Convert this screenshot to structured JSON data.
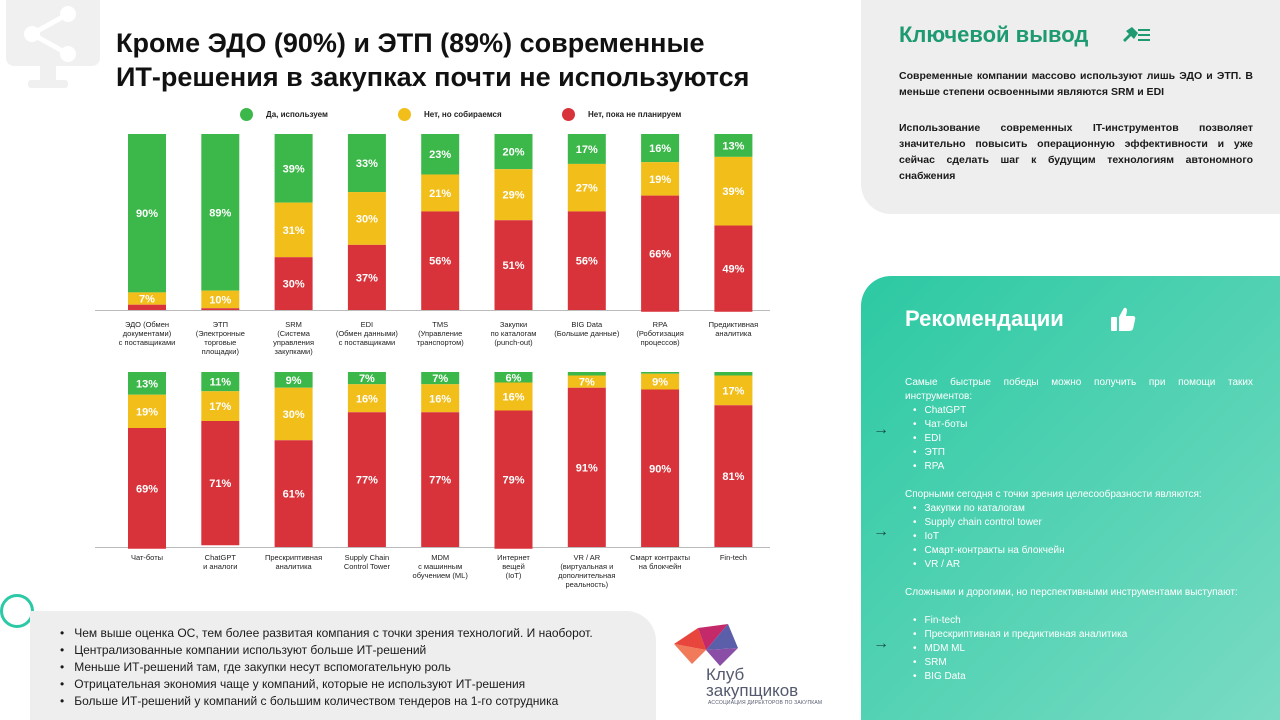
{
  "title_line1": "Кроме ЭДО (90%) и ЭТП (89%) современные",
  "title_line2": "ИТ-решения в закупках почти не используются",
  "icons": {
    "top_left": "share-monitor-icon",
    "key_takeaway": "pin-list-icon",
    "recommendations": "thumbs-up-icon",
    "arrow": "arrow-right-icon"
  },
  "colors": {
    "green": "#3cb84a",
    "yellow": "#f2be1a",
    "red": "#d8333b",
    "teal": "#2cc9a3",
    "kv_title": "#1e9a72"
  },
  "chart_data": [
    {
      "type": "bar",
      "stacked": true,
      "categories": [
        [
          "ЭДО (Обмен",
          "документами)",
          "с поставщиками"
        ],
        [
          "ЭТП",
          "(Электронные",
          "торговые",
          "площадки)"
        ],
        [
          "SRM",
          "(Система",
          "управления",
          "закупками)"
        ],
        [
          "EDI",
          "(Обмен данными)",
          "с поставщиками"
        ],
        [
          "TMS",
          "(Управление",
          "транспортом)"
        ],
        [
          "Закупки",
          "по каталогам",
          "(punch-out)"
        ],
        [
          "BIG Data",
          "(Большие данные)"
        ],
        [
          "RPA",
          "(Роботизация",
          "процессов)"
        ],
        [
          "Предиктивная",
          "аналитика"
        ]
      ],
      "series": [
        {
          "name": "Да, используем",
          "color": "#3cb84a",
          "values": [
            90,
            89,
            39,
            33,
            23,
            20,
            17,
            16,
            13
          ]
        },
        {
          "name": "Нет, но собираемся",
          "color": "#f2be1a",
          "values": [
            7,
            10,
            31,
            30,
            21,
            29,
            27,
            19,
            39
          ]
        },
        {
          "name": "Нет, пока не планируем",
          "color": "#d8333b",
          "values": [
            3,
            1,
            30,
            37,
            56,
            51,
            56,
            66,
            49
          ]
        }
      ],
      "labels": [
        [
          "90%",
          "7%",
          ""
        ],
        [
          "89%",
          "10%",
          ""
        ],
        [
          "39%",
          "31%",
          "30%"
        ],
        [
          "33%",
          "30%",
          "37%"
        ],
        [
          "23%",
          "21%",
          "56%"
        ],
        [
          "20%",
          "29%",
          "51%"
        ],
        [
          "17%",
          "27%",
          "56%"
        ],
        [
          "16%",
          "19%",
          "66%"
        ],
        [
          "13%",
          "39%",
          "49%"
        ]
      ],
      "ylim": [
        0,
        100
      ],
      "legend": "top"
    },
    {
      "type": "bar",
      "stacked": true,
      "categories": [
        [
          "Чат-боты"
        ],
        [
          "ChatGPT",
          "и аналоги"
        ],
        [
          "Прескриптивная",
          "аналитика"
        ],
        [
          "Supply Chain",
          "Control Tower"
        ],
        [
          "MDM",
          "с машинным",
          "обучением (ML)"
        ],
        [
          "Интернет",
          "вещей",
          "(IoT)"
        ],
        [
          "VR / AR",
          "(виртуальная и",
          "дополнительная",
          "реальность)"
        ],
        [
          "Смарт контракты",
          "на блокчейн"
        ],
        [
          "Fin-tech"
        ]
      ],
      "series": [
        {
          "name": "Да, используем",
          "color": "#3cb84a",
          "values": [
            13,
            11,
            9,
            7,
            7,
            6,
            2,
            1,
            2
          ]
        },
        {
          "name": "Нет, но собираемся",
          "color": "#f2be1a",
          "values": [
            19,
            17,
            30,
            16,
            16,
            16,
            7,
            9,
            17
          ]
        },
        {
          "name": "Нет, пока не планируем",
          "color": "#d8333b",
          "values": [
            69,
            71,
            61,
            77,
            77,
            79,
            91,
            90,
            81
          ]
        }
      ],
      "labels": [
        [
          "13%",
          "19%",
          "69%"
        ],
        [
          "11%",
          "17%",
          "71%"
        ],
        [
          "9%",
          "30%",
          "61%"
        ],
        [
          "7%",
          "16%",
          "77%"
        ],
        [
          "7%",
          "16%",
          "77%"
        ],
        [
          "6%",
          "16%",
          "79%"
        ],
        [
          "",
          "7%",
          "91%"
        ],
        [
          "",
          "9%",
          "90%"
        ],
        [
          "",
          "17%",
          "81%"
        ]
      ],
      "ylim": [
        0,
        100
      ]
    }
  ],
  "notes": [
    "Чем выше оценка ОС, тем более развитая компания с точки зрения технологий. И наоборот.",
    "Централизованные компании используют больше ИТ-решений",
    "Меньше ИТ-решений там, где закупки несут вспомогательную роль",
    "Отрицательная экономия чаще у компаний, которые не используют ИТ-решения",
    "Больше ИТ-решений у компаний с большим количеством тендеров на 1-го сотрудника"
  ],
  "logo": {
    "name_line1": "Клуб",
    "name_line2": "закупщиков",
    "subtitle": "АССОЦИАЦИЯ ДИРЕКТОРОВ ПО ЗАКУПКАМ"
  },
  "key_takeaway": {
    "title": "Ключевой вывод",
    "p1": "Современные компании массово используют лишь ЭДО и ЭТП. В меньше степени освоенными являются SRM и EDI",
    "p2": "Использование современных IT-инструментов позволяет значительно повысить операционную эффективности и уже сейчас сделать шаг к будущим технологиям автономного снабжения"
  },
  "recommendations": {
    "title": "Рекомендации",
    "groups": [
      {
        "intro": "Самые быстрые победы можно получить при помощи таких инструментов:",
        "items": [
          "ChatGPT",
          "Чат-боты",
          "EDI",
          "ЭТП",
          "RPA"
        ]
      },
      {
        "intro": "Спорными сегодня с точки зрения целесообразности являются:",
        "items": [
          "Закупки по каталогам",
          "Supply chain control tower",
          "IoT",
          "Смарт-контракты на блокчейн",
          "VR / AR"
        ]
      },
      {
        "intro": "Сложными и дорогими, но перспективными инструментами выступают:",
        "items": [
          "Fin-tech",
          "Прескриптивная и предиктивная аналитика",
          "MDM ML",
          "SRM",
          "BIG Data"
        ]
      }
    ]
  }
}
